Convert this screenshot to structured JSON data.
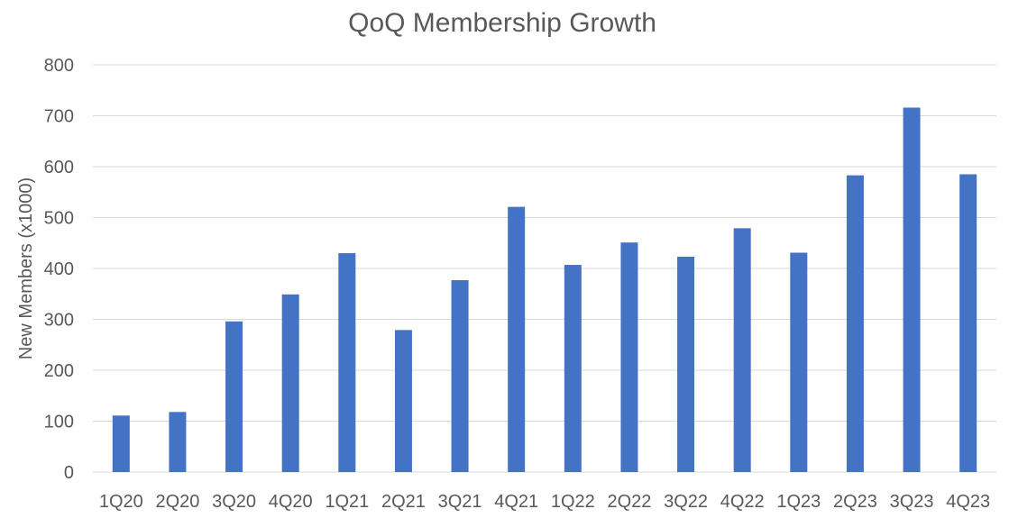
{
  "chart_data": {
    "type": "bar",
    "title": "QoQ Membership Growth",
    "xlabel": "",
    "ylabel": "New Members (x1000)",
    "ylim": [
      0,
      800
    ],
    "yticks": [
      0,
      100,
      200,
      300,
      400,
      500,
      600,
      700,
      800
    ],
    "grid": true,
    "legend": "none",
    "bar_color": "#4472C4",
    "categories": [
      "1Q20",
      "2Q20",
      "3Q20",
      "4Q20",
      "1Q21",
      "2Q21",
      "3Q21",
      "4Q21",
      "1Q22",
      "2Q22",
      "3Q22",
      "4Q22",
      "1Q23",
      "2Q23",
      "3Q23",
      "4Q23"
    ],
    "values": [
      111,
      118,
      296,
      349,
      430,
      279,
      377,
      521,
      407,
      451,
      423,
      479,
      431,
      583,
      716,
      585
    ]
  }
}
